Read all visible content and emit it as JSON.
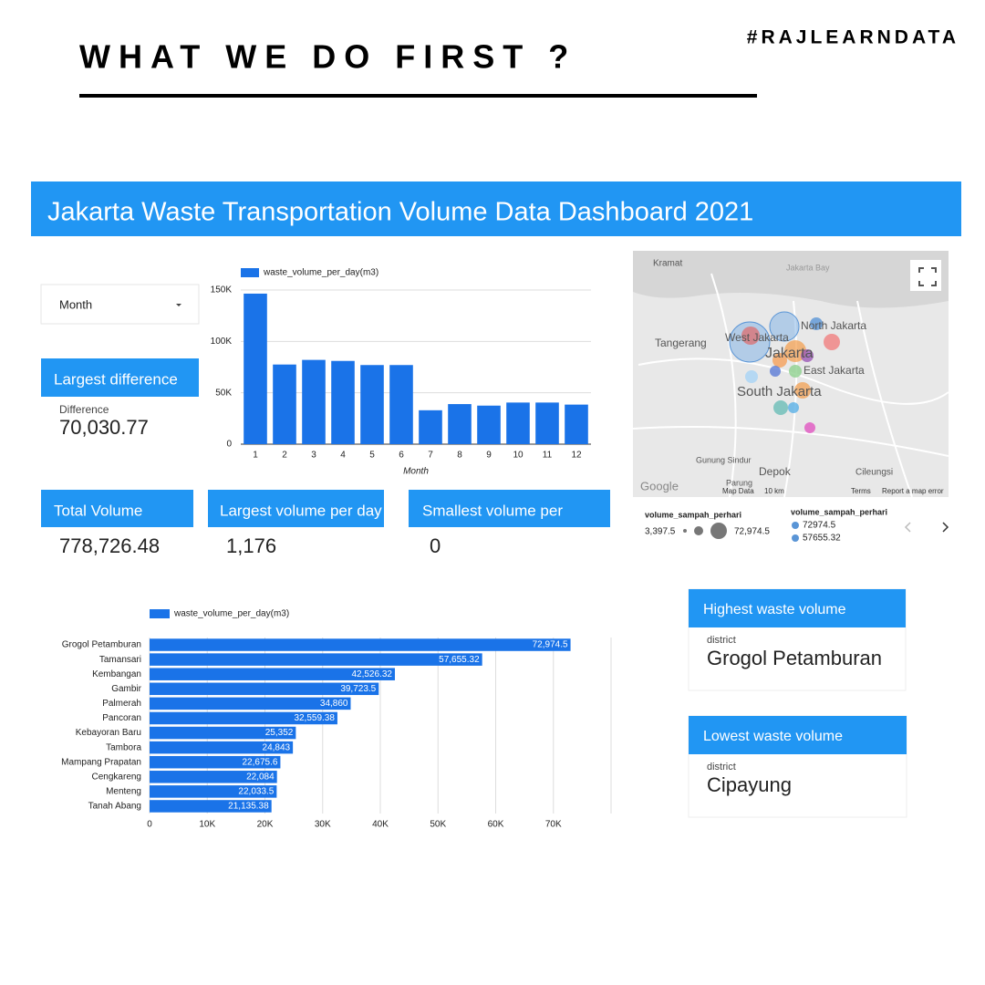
{
  "header": {
    "title": "WHAT WE DO FIRST ?",
    "hashtag": "#RAJLEARNDATA"
  },
  "dashboard": {
    "title": "Jakarta Waste Transportation Volume Data Dashboard 2021",
    "filter": "Month",
    "kpis": [
      {
        "title": "Largest difference",
        "label": "Difference",
        "value": "70,030.77"
      },
      {
        "title": "Total Volume",
        "value": "778,726.48"
      },
      {
        "title": "Largest volume per day",
        "value": "1,176"
      },
      {
        "title": "Smallest volume per",
        "value": "0"
      }
    ],
    "cards": [
      {
        "title": "Highest waste volume",
        "label": "district",
        "value": "Grogol Petamburan"
      },
      {
        "title": "Lowest waste volume",
        "label": "district",
        "value": "Cipayung"
      }
    ],
    "map": {
      "labels": [
        "Kramat",
        "Jakarta Bay",
        "Tangerang",
        "West Jakarta",
        "North Jakarta",
        "Jakarta",
        "East Jakarta",
        "South Jakarta",
        "Depok",
        "Gunung Sindur",
        "Parung",
        "Cileungsi"
      ],
      "footer": [
        "Google",
        "Map Data",
        "10 km",
        "Terms",
        "Report a map error"
      ],
      "legend": {
        "size_title": "volume_sampah_perhari",
        "size_min": "3,397.5",
        "size_max": "72,974.5",
        "color_title": "volume_sampah_perhari",
        "color_items": [
          "72974.5",
          "57655.32"
        ]
      }
    }
  },
  "chart_data": [
    {
      "type": "bar",
      "horizontal": false,
      "xlabel": "Month",
      "color": "#1a73e8",
      "grid": true,
      "categories": [
        "1",
        "2",
        "3",
        "4",
        "5",
        "6",
        "7",
        "8",
        "9",
        "10",
        "11",
        "12"
      ],
      "series": [
        {
          "name": "waste_volume_per_day(m3)",
          "color": "#1a73e8",
          "values": [
            146500,
            77500,
            82000,
            81000,
            77000,
            77000,
            33000,
            39000,
            37500,
            40500,
            40500,
            38500
          ]
        }
      ],
      "ylim": [
        0,
        150000
      ],
      "yticks": [
        0,
        {
          "value": 50000,
          "label": "50K"
        },
        {
          "value": 100000,
          "label": "100K"
        },
        {
          "value": 150000,
          "label": "150K"
        }
      ]
    },
    {
      "type": "bar",
      "horizontal": true,
      "color": "#1a73e8",
      "grid": true,
      "categories": [
        "Grogol Petamburan",
        "Tamansari",
        "Kembangan",
        "Gambir",
        "Palmerah",
        "Pancoran",
        "Kebayoran Baru",
        "Tambora",
        "Mampang Prapatan",
        "Cengkareng",
        "Menteng",
        "Tanah Abang"
      ],
      "series": [
        {
          "name": "waste_volume_per_day(m3)",
          "color": "#1a73e8",
          "values": [
            72974.5,
            57655.32,
            42526.32,
            39723.5,
            34860,
            32559.38,
            25352,
            24843,
            22675.6,
            22084,
            22033.5,
            21135.38
          ],
          "value_labels": [
            "72,974.5",
            "57,655.32",
            "42,526.32",
            "39,723.5",
            "34,860",
            "32,559.38",
            "25,352",
            "24,843",
            "22,675.6",
            "22,084",
            "22,033.5",
            "21,135.38"
          ]
        }
      ],
      "xlim": [
        0,
        80000
      ],
      "xticks": [
        0,
        {
          "value": 10000,
          "label": "10K"
        },
        {
          "value": 20000,
          "label": "20K"
        },
        {
          "value": 30000,
          "label": "30K"
        },
        {
          "value": 40000,
          "label": "40K"
        },
        {
          "value": 50000,
          "label": "50K"
        },
        {
          "value": 60000,
          "label": "60K"
        },
        {
          "value": 70000,
          "label": "70K"
        }
      ]
    }
  ]
}
